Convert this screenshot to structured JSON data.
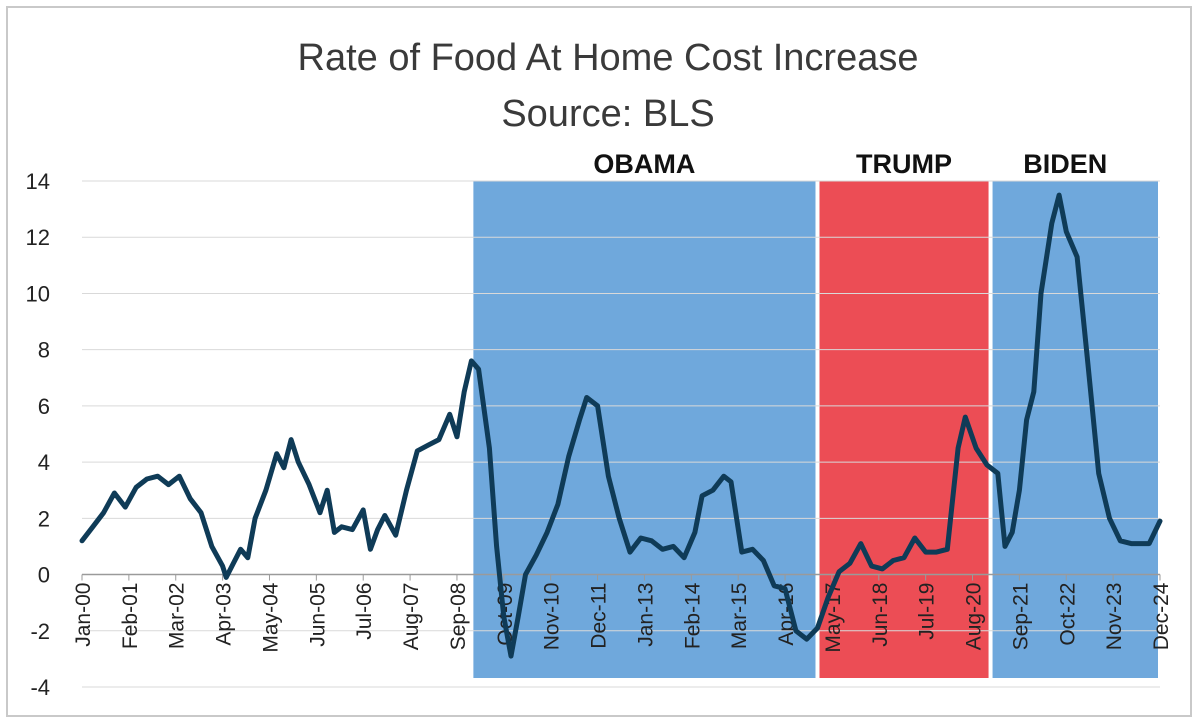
{
  "chart_data": {
    "type": "line",
    "title": "Rate of Food At Home Cost Increase",
    "subtitle": "Source: BLS",
    "xlabel": "",
    "ylabel": "",
    "ylim": [
      -4,
      14
    ],
    "yticks": [
      "14",
      "12",
      "10",
      "8",
      "6",
      "4",
      "2",
      "0",
      "-2",
      "-4"
    ],
    "yticks_values": [
      14,
      12,
      10,
      8,
      6,
      4,
      2,
      0,
      -2,
      -4
    ],
    "xticks": [
      "Jan-00",
      "Feb-01",
      "Mar-02",
      "Apr-03",
      "May-04",
      "Jun-05",
      "Jul-06",
      "Aug-07",
      "Sep-08",
      "Oct-09",
      "Nov-10",
      "Dec-11",
      "Jan-13",
      "Feb-14",
      "Mar-15",
      "Apr-16",
      "May-17",
      "Jun-18",
      "Jul-19",
      "Aug-20",
      "Sep-21",
      "Oct-22",
      "Nov-23",
      "Dec-24"
    ],
    "grid": "horizontal",
    "line_color": "#0f3b57",
    "eras": [
      {
        "label": "OBAMA",
        "start": "Jan-09",
        "end": "Jan-17",
        "color": "#6fa8dc"
      },
      {
        "label": "TRUMP",
        "start": "Jan-17",
        "end": "Jan-21",
        "color": "#ec4d55"
      },
      {
        "label": "BIDEN",
        "start": "Jan-21",
        "end": "Dec-24",
        "color": "#6fa8dc"
      }
    ],
    "series": [
      {
        "name": "",
        "points": [
          [
            "Jan-00",
            1.2
          ],
          [
            "Apr-00",
            1.7
          ],
          [
            "Jul-00",
            2.2
          ],
          [
            "Oct-00",
            2.9
          ],
          [
            "Jan-01",
            2.4
          ],
          [
            "Apr-01",
            3.1
          ],
          [
            "Jul-01",
            3.4
          ],
          [
            "Oct-01",
            3.5
          ],
          [
            "Jan-02",
            3.2
          ],
          [
            "Apr-02",
            3.5
          ],
          [
            "Jul-02",
            2.7
          ],
          [
            "Oct-02",
            2.2
          ],
          [
            "Jan-03",
            1.0
          ],
          [
            "Apr-03",
            0.3
          ],
          [
            "May-03",
            -0.1
          ],
          [
            "Jul-03",
            0.4
          ],
          [
            "Sep-03",
            0.9
          ],
          [
            "Nov-03",
            0.6
          ],
          [
            "Jan-04",
            2.0
          ],
          [
            "Apr-04",
            3.0
          ],
          [
            "Jul-04",
            4.3
          ],
          [
            "Sep-04",
            3.8
          ],
          [
            "Nov-04",
            4.8
          ],
          [
            "Jan-05",
            4.0
          ],
          [
            "Apr-05",
            3.2
          ],
          [
            "Jul-05",
            2.2
          ],
          [
            "Sep-05",
            3.0
          ],
          [
            "Nov-05",
            1.5
          ],
          [
            "Jan-06",
            1.7
          ],
          [
            "Apr-06",
            1.6
          ],
          [
            "Jul-06",
            2.3
          ],
          [
            "Sep-06",
            0.9
          ],
          [
            "Nov-06",
            1.6
          ],
          [
            "Jan-07",
            2.1
          ],
          [
            "Apr-07",
            1.4
          ],
          [
            "Jul-07",
            3.0
          ],
          [
            "Oct-07",
            4.4
          ],
          [
            "Jan-08",
            4.6
          ],
          [
            "Apr-08",
            4.8
          ],
          [
            "Jul-08",
            5.7
          ],
          [
            "Sep-08",
            4.9
          ],
          [
            "Nov-08",
            6.5
          ],
          [
            "Jan-09",
            7.6
          ],
          [
            "Mar-09",
            7.3
          ],
          [
            "Jun-09",
            4.5
          ],
          [
            "Aug-09",
            1.0
          ],
          [
            "Oct-09",
            -1.5
          ],
          [
            "Dec-09",
            -2.9
          ],
          [
            "Feb-10",
            -1.5
          ],
          [
            "Apr-10",
            0.0
          ],
          [
            "Jul-10",
            0.7
          ],
          [
            "Oct-10",
            1.5
          ],
          [
            "Jan-11",
            2.5
          ],
          [
            "Apr-11",
            4.2
          ],
          [
            "Jul-11",
            5.5
          ],
          [
            "Sep-11",
            6.3
          ],
          [
            "Dec-11",
            6.0
          ],
          [
            "Mar-12",
            3.5
          ],
          [
            "Jun-12",
            2.0
          ],
          [
            "Sep-12",
            0.8
          ],
          [
            "Dec-12",
            1.3
          ],
          [
            "Mar-13",
            1.2
          ],
          [
            "Jun-13",
            0.9
          ],
          [
            "Sep-13",
            1.0
          ],
          [
            "Dec-13",
            0.6
          ],
          [
            "Mar-14",
            1.5
          ],
          [
            "May-14",
            2.8
          ],
          [
            "Aug-14",
            3.0
          ],
          [
            "Nov-14",
            3.5
          ],
          [
            "Jan-15",
            3.3
          ],
          [
            "Apr-15",
            0.8
          ],
          [
            "Jul-15",
            0.9
          ],
          [
            "Oct-15",
            0.5
          ],
          [
            "Jan-16",
            -0.4
          ],
          [
            "Apr-16",
            -0.5
          ],
          [
            "Jul-16",
            -2.0
          ],
          [
            "Oct-16",
            -2.3
          ],
          [
            "Jan-17",
            -1.9
          ],
          [
            "Apr-17",
            -0.8
          ],
          [
            "Jul-17",
            0.1
          ],
          [
            "Oct-17",
            0.4
          ],
          [
            "Jan-18",
            1.1
          ],
          [
            "Apr-18",
            0.3
          ],
          [
            "Jul-18",
            0.2
          ],
          [
            "Oct-18",
            0.5
          ],
          [
            "Jan-19",
            0.6
          ],
          [
            "Apr-19",
            1.3
          ],
          [
            "Jul-19",
            0.8
          ],
          [
            "Oct-19",
            0.8
          ],
          [
            "Jan-20",
            0.9
          ],
          [
            "Apr-20",
            4.5
          ],
          [
            "Jun-20",
            5.6
          ],
          [
            "Sep-20",
            4.5
          ],
          [
            "Dec-20",
            3.9
          ],
          [
            "Mar-21",
            3.6
          ],
          [
            "May-21",
            1.0
          ],
          [
            "Jul-21",
            1.5
          ],
          [
            "Sep-21",
            3.0
          ],
          [
            "Nov-21",
            5.5
          ],
          [
            "Jan-22",
            6.5
          ],
          [
            "Mar-22",
            10.0
          ],
          [
            "Jun-22",
            12.5
          ],
          [
            "Aug-22",
            13.5
          ],
          [
            "Oct-22",
            12.2
          ],
          [
            "Jan-23",
            11.3
          ],
          [
            "Apr-23",
            7.5
          ],
          [
            "Jul-23",
            3.6
          ],
          [
            "Oct-23",
            2.0
          ],
          [
            "Jan-24",
            1.2
          ],
          [
            "Apr-24",
            1.1
          ],
          [
            "Jul-24",
            1.1
          ],
          [
            "Sep-24",
            1.1
          ],
          [
            "Dec-24",
            1.9
          ]
        ]
      }
    ]
  }
}
